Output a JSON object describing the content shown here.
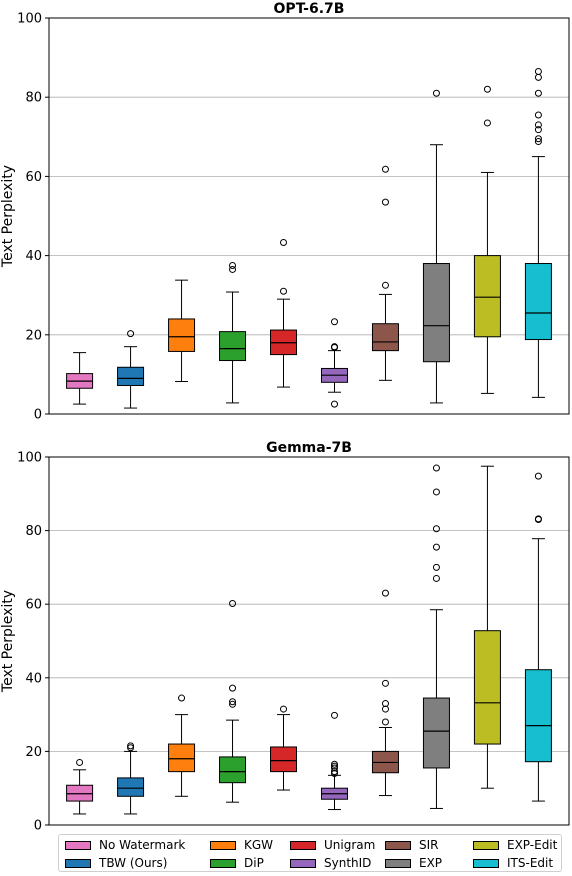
{
  "chart_data": [
    {
      "type": "box",
      "title": "OPT-6.7B",
      "xlabel": "",
      "ylabel": "Text Perplexity",
      "ylim": [
        0,
        100
      ],
      "yticks": [
        0,
        20,
        40,
        60,
        80,
        100
      ],
      "grid": "horizontal",
      "categories": [
        "No Watermark",
        "TBW (Ours)",
        "KGW",
        "DiP",
        "Unigram",
        "SynthID",
        "SIR",
        "EXP",
        "EXP-Edit",
        "ITS-Edit"
      ],
      "series": [
        {
          "name": "No Watermark",
          "whisker_low": 2.5,
          "q1": 6.5,
          "median": 8.3,
          "q3": 10.2,
          "whisker_high": 15.5,
          "outliers": []
        },
        {
          "name": "TBW (Ours)",
          "whisker_low": 1.5,
          "q1": 7.2,
          "median": 9.0,
          "q3": 11.8,
          "whisker_high": 17.0,
          "outliers": [
            20.3
          ]
        },
        {
          "name": "KGW",
          "whisker_low": 8.2,
          "q1": 15.8,
          "median": 19.5,
          "q3": 24.0,
          "whisker_high": 33.8,
          "outliers": []
        },
        {
          "name": "DiP",
          "whisker_low": 2.8,
          "q1": 13.5,
          "median": 16.5,
          "q3": 20.8,
          "whisker_high": 30.8,
          "outliers": [
            36.5,
            37.5
          ]
        },
        {
          "name": "Unigram",
          "whisker_low": 6.8,
          "q1": 15.0,
          "median": 18.0,
          "q3": 21.2,
          "whisker_high": 29.0,
          "outliers": [
            31.0,
            43.3
          ]
        },
        {
          "name": "SynthID",
          "whisker_low": 5.5,
          "q1": 8.0,
          "median": 9.8,
          "q3": 11.5,
          "whisker_high": 16.0,
          "outliers": [
            2.5,
            16.8,
            17.0,
            23.3
          ]
        },
        {
          "name": "SIR",
          "whisker_low": 8.5,
          "q1": 16.0,
          "median": 18.2,
          "q3": 22.8,
          "whisker_high": 30.2,
          "outliers": [
            32.5,
            53.5,
            61.8
          ]
        },
        {
          "name": "EXP",
          "whisker_low": 2.8,
          "q1": 13.2,
          "median": 22.3,
          "q3": 38.0,
          "whisker_high": 68.0,
          "outliers": [
            81.0
          ]
        },
        {
          "name": "EXP-Edit",
          "whisker_low": 5.2,
          "q1": 19.5,
          "median": 29.5,
          "q3": 40.0,
          "whisker_high": 61.0,
          "outliers": [
            73.5,
            82.0
          ]
        },
        {
          "name": "ITS-Edit",
          "whisker_low": 4.2,
          "q1": 18.8,
          "median": 25.5,
          "q3": 38.0,
          "whisker_high": 65.0,
          "outliers": [
            68.8,
            69.5,
            71.8,
            73.0,
            75.5,
            81.0,
            85.0,
            86.5
          ]
        }
      ]
    },
    {
      "type": "box",
      "title": "Gemma-7B",
      "xlabel": "",
      "ylabel": "Text Perplexity",
      "ylim": [
        0,
        100
      ],
      "yticks": [
        0,
        20,
        40,
        60,
        80,
        100
      ],
      "grid": "horizontal",
      "categories": [
        "No Watermark",
        "TBW (Ours)",
        "KGW",
        "DiP",
        "Unigram",
        "SynthID",
        "SIR",
        "EXP",
        "EXP-Edit",
        "ITS-Edit"
      ],
      "series": [
        {
          "name": "No Watermark",
          "whisker_low": 3.0,
          "q1": 6.5,
          "median": 8.5,
          "q3": 10.8,
          "whisker_high": 15.0,
          "outliers": [
            17.0
          ]
        },
        {
          "name": "TBW (Ours)",
          "whisker_low": 3.0,
          "q1": 7.8,
          "median": 10.0,
          "q3": 12.8,
          "whisker_high": 20.0,
          "outliers": [
            21.0,
            21.5
          ]
        },
        {
          "name": "KGW",
          "whisker_low": 7.8,
          "q1": 14.5,
          "median": 18.0,
          "q3": 22.0,
          "whisker_high": 30.0,
          "outliers": [
            34.5
          ]
        },
        {
          "name": "DiP",
          "whisker_low": 6.2,
          "q1": 11.5,
          "median": 14.5,
          "q3": 18.5,
          "whisker_high": 28.5,
          "outliers": [
            32.8,
            33.5,
            37.2,
            60.2
          ]
        },
        {
          "name": "Unigram",
          "whisker_low": 9.5,
          "q1": 14.5,
          "median": 17.5,
          "q3": 21.2,
          "whisker_high": 30.0,
          "outliers": [
            31.5
          ]
        },
        {
          "name": "SynthID",
          "whisker_low": 4.2,
          "q1": 7.0,
          "median": 8.5,
          "q3": 10.0,
          "whisker_high": 13.5,
          "outliers": [
            14.0,
            14.5,
            15.5,
            16.0,
            16.5,
            29.8
          ]
        },
        {
          "name": "SIR",
          "whisker_low": 8.0,
          "q1": 14.2,
          "median": 17.0,
          "q3": 20.0,
          "whisker_high": 26.5,
          "outliers": [
            28.0,
            31.5,
            33.0,
            38.5,
            63.0
          ]
        },
        {
          "name": "EXP",
          "whisker_low": 4.5,
          "q1": 15.5,
          "median": 25.5,
          "q3": 34.5,
          "whisker_high": 58.5,
          "outliers": [
            67.0,
            70.0,
            75.5,
            80.5,
            90.5,
            97.0
          ]
        },
        {
          "name": "EXP-Edit",
          "whisker_low": 10.0,
          "q1": 22.0,
          "median": 33.2,
          "q3": 52.8,
          "whisker_high": 97.5,
          "outliers": []
        },
        {
          "name": "ITS-Edit",
          "whisker_low": 6.5,
          "q1": 17.2,
          "median": 27.0,
          "q3": 42.2,
          "whisker_high": 77.8,
          "outliers": [
            83.0,
            83.2,
            94.8
          ]
        }
      ]
    }
  ],
  "legend": {
    "placement": "bottom",
    "items": [
      {
        "label": "No Watermark",
        "color": "#e377c2"
      },
      {
        "label": "TBW (Ours)",
        "color": "#1f77b4"
      },
      {
        "label": "KGW",
        "color": "#ff7f0e"
      },
      {
        "label": "DiP",
        "color": "#2ca02c"
      },
      {
        "label": "Unigram",
        "color": "#d62728"
      },
      {
        "label": "SynthID",
        "color": "#9467bd"
      },
      {
        "label": "SIR",
        "color": "#8c564b"
      },
      {
        "label": "EXP",
        "color": "#7f7f7f"
      },
      {
        "label": "EXP-Edit",
        "color": "#bcbd22"
      },
      {
        "label": "ITS-Edit",
        "color": "#17becf"
      }
    ]
  }
}
